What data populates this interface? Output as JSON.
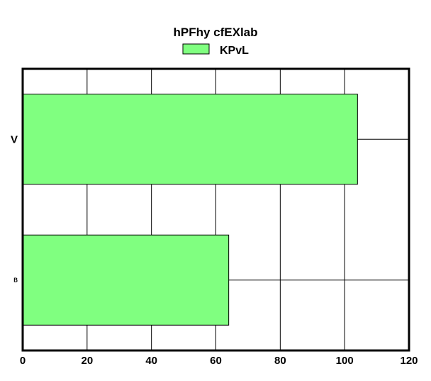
{
  "chart_data": {
    "type": "bar",
    "orientation": "horizontal",
    "title": "hPFhy cfEXlab",
    "xlabel": "",
    "ylabel": "",
    "categories": [
      "V",
      "B"
    ],
    "series": [
      {
        "name": "KPvL",
        "values": [
          104,
          64
        ],
        "color": "#80ff80"
      }
    ],
    "xlim": [
      0,
      120
    ],
    "xticks": [
      "0",
      "20",
      "40",
      "60",
      "80",
      "100",
      "120"
    ],
    "xtick_values": [
      0,
      20,
      40,
      60,
      80,
      100,
      120
    ],
    "grid": true,
    "legend_position": "top-center",
    "colors": {
      "bar": "#80ff80",
      "grid": "#000000",
      "frame": "#000000",
      "text": "#000000"
    }
  }
}
